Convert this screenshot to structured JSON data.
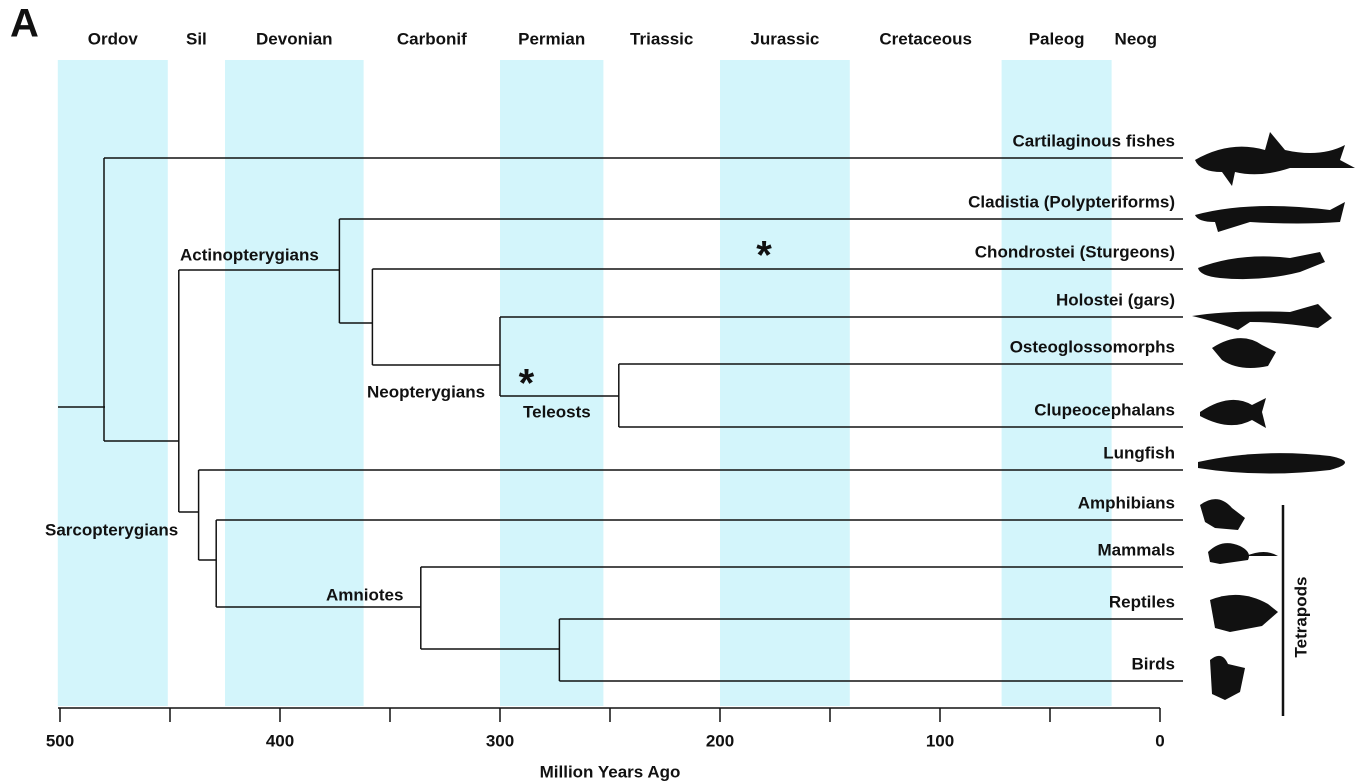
{
  "panel_label": "A",
  "axis": {
    "label": "Million Years Ago",
    "lim": [
      500,
      0
    ],
    "ticks": [
      500,
      400,
      300,
      200,
      100,
      0
    ],
    "minor_ticks": [
      450,
      350,
      250,
      150,
      50
    ]
  },
  "periods": [
    {
      "name": "Ordov",
      "start": 501,
      "end": 451,
      "shaded": true
    },
    {
      "name": "Sil",
      "start": 451,
      "end": 425,
      "shaded": false
    },
    {
      "name": "Devonian",
      "start": 425,
      "end": 362,
      "shaded": true
    },
    {
      "name": "Carbonif",
      "start": 362,
      "end": 300,
      "shaded": false
    },
    {
      "name": "Permian",
      "start": 300,
      "end": 253,
      "shaded": true
    },
    {
      "name": "Triassic",
      "start": 253,
      "end": 200,
      "shaded": false
    },
    {
      "name": "Jurassic",
      "start": 200,
      "end": 141,
      "shaded": true
    },
    {
      "name": "Cretaceous",
      "start": 141,
      "end": 72,
      "shaded": false
    },
    {
      "name": "Paleog",
      "start": 72,
      "end": 22,
      "shaded": true
    },
    {
      "name": "Neog",
      "start": 22,
      "end": 0,
      "shaded": false
    }
  ],
  "tree": {
    "tips": [
      "Cartilaginous fishes",
      "Cladistia (Polypteriforms)",
      "Chondrostei (Sturgeons)",
      "Holostei (gars)",
      "Osteoglossomorphs",
      "Clupeocephalans",
      "Lungfish",
      "Amphibians",
      "Mammals",
      "Reptiles",
      "Birds"
    ],
    "nodes": [
      {
        "time": 480,
        "child_tips": [
          0
        ],
        "child_nodes": [
          1
        ]
      },
      {
        "time": 446,
        "child_tips": [],
        "child_nodes": [
          2,
          6
        ]
      },
      {
        "time": 373,
        "child_tips": [
          1
        ],
        "child_nodes": [
          3
        ]
      },
      {
        "time": 358,
        "child_tips": [
          2
        ],
        "child_nodes": [
          4
        ]
      },
      {
        "time": 300,
        "child_tips": [
          3
        ],
        "child_nodes": [
          5
        ]
      },
      {
        "time": 246,
        "child_tips": [
          4,
          5
        ],
        "child_nodes": []
      },
      {
        "time": 437,
        "child_tips": [
          6
        ],
        "child_nodes": [
          7
        ]
      },
      {
        "time": 429,
        "child_tips": [
          7
        ],
        "child_nodes": [
          8
        ]
      },
      {
        "time": 336,
        "child_tips": [
          8
        ],
        "child_nodes": [
          9
        ]
      },
      {
        "time": 273,
        "child_tips": [
          9,
          10
        ],
        "child_nodes": []
      }
    ]
  },
  "clade_labels": [
    "Actinopterygians",
    "Neopterygians",
    "Teleosts",
    "Sarcopterygians",
    "Amniotes"
  ],
  "markers": [
    {
      "label": "*",
      "time": 180
    },
    {
      "label": "*",
      "time": 288
    }
  ],
  "group_label": "Tetrapods"
}
